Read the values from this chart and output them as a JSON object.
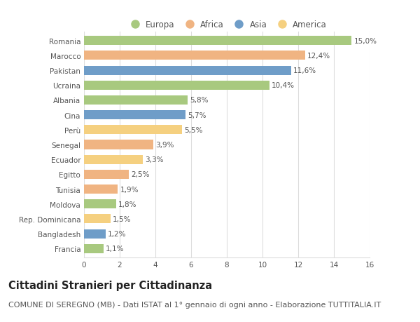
{
  "categories": [
    "Romania",
    "Marocco",
    "Pakistan",
    "Ucraina",
    "Albania",
    "Cina",
    "Perù",
    "Senegal",
    "Ecuador",
    "Egitto",
    "Tunisia",
    "Moldova",
    "Rep. Dominicana",
    "Bangladesh",
    "Francia"
  ],
  "values": [
    15.0,
    12.4,
    11.6,
    10.4,
    5.8,
    5.7,
    5.5,
    3.9,
    3.3,
    2.5,
    1.9,
    1.8,
    1.5,
    1.2,
    1.1
  ],
  "labels": [
    "15,0%",
    "12,4%",
    "11,6%",
    "10,4%",
    "5,8%",
    "5,7%",
    "5,5%",
    "3,9%",
    "3,3%",
    "2,5%",
    "1,9%",
    "1,8%",
    "1,5%",
    "1,2%",
    "1,1%"
  ],
  "continents": [
    "Europa",
    "Africa",
    "Asia",
    "Europa",
    "Europa",
    "Asia",
    "America",
    "Africa",
    "America",
    "Africa",
    "Africa",
    "Europa",
    "America",
    "Asia",
    "Europa"
  ],
  "colors": {
    "Europa": "#a8c97f",
    "Africa": "#f0b482",
    "Asia": "#6f9dc8",
    "America": "#f5d080"
  },
  "title": "Cittadini Stranieri per Cittadinanza",
  "subtitle": "COMUNE DI SEREGNO (MB) - Dati ISTAT al 1° gennaio di ogni anno - Elaborazione TUTTITALIA.IT",
  "xlim": [
    0,
    16
  ],
  "xticks": [
    0,
    2,
    4,
    6,
    8,
    10,
    12,
    14,
    16
  ],
  "background_color": "#ffffff",
  "grid_color": "#dddddd",
  "bar_height": 0.62,
  "title_fontsize": 10.5,
  "subtitle_fontsize": 8,
  "label_fontsize": 7.5,
  "tick_fontsize": 7.5,
  "legend_fontsize": 8.5
}
